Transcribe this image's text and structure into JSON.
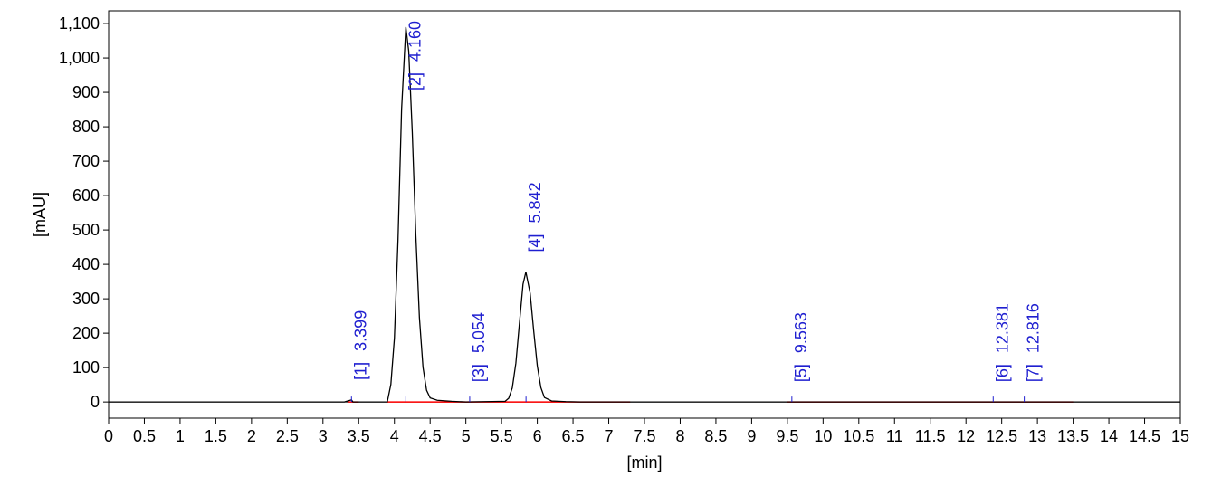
{
  "chart_data": {
    "type": "line",
    "xlabel": "[min]",
    "ylabel": "[mAU]",
    "xlim": [
      0,
      15
    ],
    "ylim": [
      -47,
      1137
    ],
    "xticks": [
      0,
      0.5,
      1,
      1.5,
      2,
      2.5,
      3,
      3.5,
      4,
      4.5,
      5,
      5.5,
      6,
      6.5,
      7,
      7.5,
      8,
      8.5,
      9,
      9.5,
      10,
      10.5,
      11,
      11.5,
      12,
      12.5,
      13,
      13.5,
      14,
      14.5,
      15
    ],
    "yticks": [
      0,
      100,
      200,
      300,
      400,
      500,
      600,
      700,
      800,
      900,
      {
        "value": 1000,
        "label": "1,000"
      },
      {
        "value": 1100,
        "label": "1,100"
      }
    ],
    "x": [
      0,
      3.3,
      3.38,
      3.399,
      3.42,
      3.9,
      3.95,
      4.0,
      4.05,
      4.1,
      4.16,
      4.2,
      4.25,
      4.3,
      4.35,
      4.4,
      4.45,
      4.5,
      4.6,
      4.8,
      5.0,
      5.55,
      5.6,
      5.65,
      5.7,
      5.75,
      5.8,
      5.84,
      5.9,
      5.95,
      6.0,
      6.05,
      6.1,
      6.2,
      6.4,
      6.6,
      15
    ],
    "series": [
      {
        "color": "#000000",
        "values": [
          0,
          0,
          5,
          6,
          0,
          0,
          51,
          186,
          470,
          850,
          1090,
          1020,
          783,
          484,
          245,
          101,
          34,
          12,
          5,
          2,
          0,
          2,
          11,
          41,
          113,
          229,
          342,
          378,
          316,
          206,
          105,
          42,
          13,
          3,
          1,
          0,
          0
        ]
      }
    ],
    "baseline_color": "#ff0000",
    "baselines": [
      [
        3.35,
        3.5
      ],
      [
        3.9,
        7.3
      ],
      [
        9.5,
        11.1
      ],
      [
        11.1,
        13.5
      ]
    ],
    "peak_color": "#1f1fd0",
    "peaks": [
      {
        "id": "[1]",
        "rt": 3.399
      },
      {
        "id": "[2]",
        "rt": {
          "value": 4.16,
          "label": "4.160"
        }
      },
      {
        "id": "[3]",
        "rt": 5.054
      },
      {
        "id": "[4]",
        "rt": 5.842
      },
      {
        "id": "[5]",
        "rt": 9.563
      },
      {
        "id": "[6]",
        "rt": 12.381
      },
      {
        "id": "[7]",
        "rt": 12.816
      }
    ]
  }
}
